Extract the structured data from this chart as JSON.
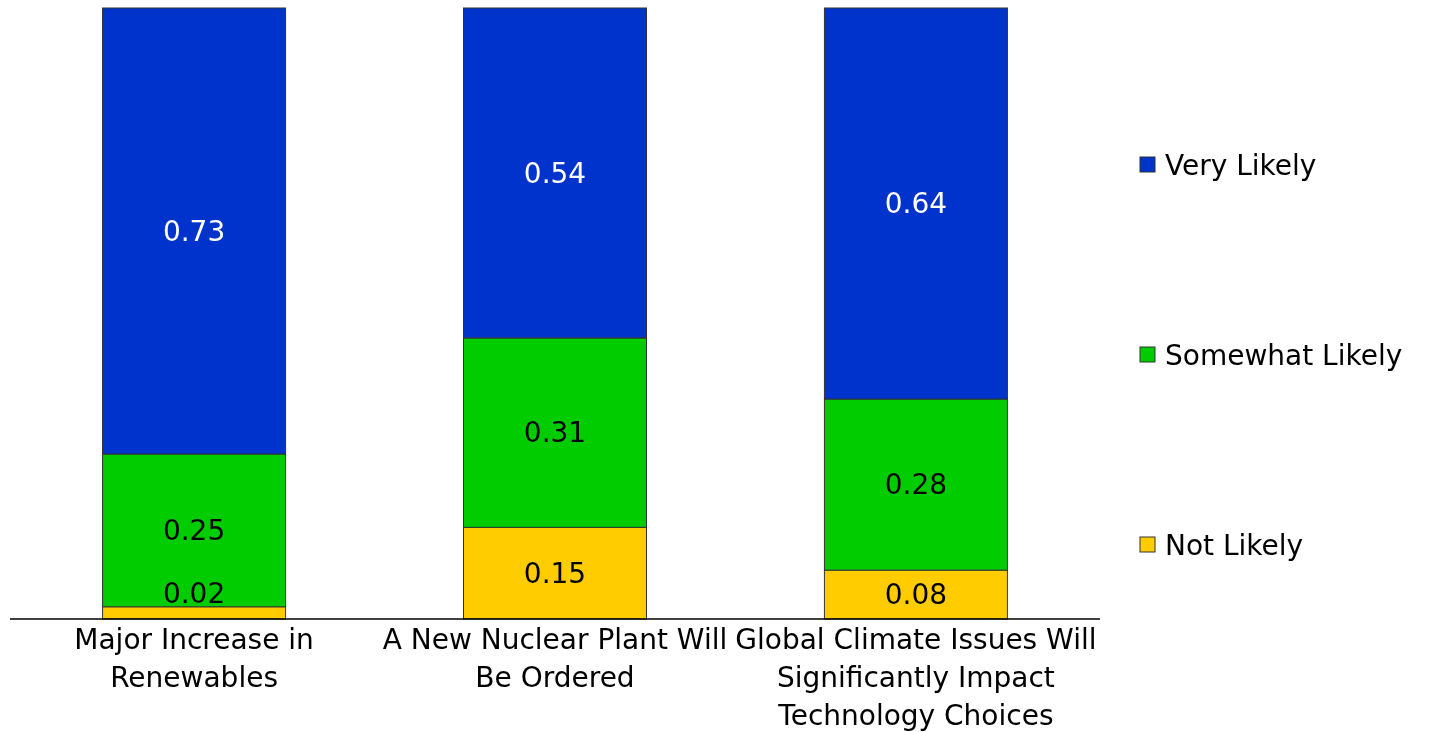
{
  "chart_data": {
    "type": "bar",
    "stacked": true,
    "categories": [
      "Major Increase in Renewables",
      "A New Nuclear Plant Will Be Ordered",
      "Global Climate Issues Will Significantly Impact Technology Choices"
    ],
    "series": [
      {
        "name": "Not Likely",
        "color": "#ffcc00",
        "values": [
          0.02,
          0.15,
          0.08
        ]
      },
      {
        "name": "Somewhat Likely",
        "color": "#00cc00",
        "values": [
          0.25,
          0.31,
          0.28
        ]
      },
      {
        "name": "Very Likely",
        "color": "#0033cc",
        "values": [
          0.73,
          0.54,
          0.64
        ]
      }
    ],
    "data_labels": true,
    "legend": "right"
  }
}
